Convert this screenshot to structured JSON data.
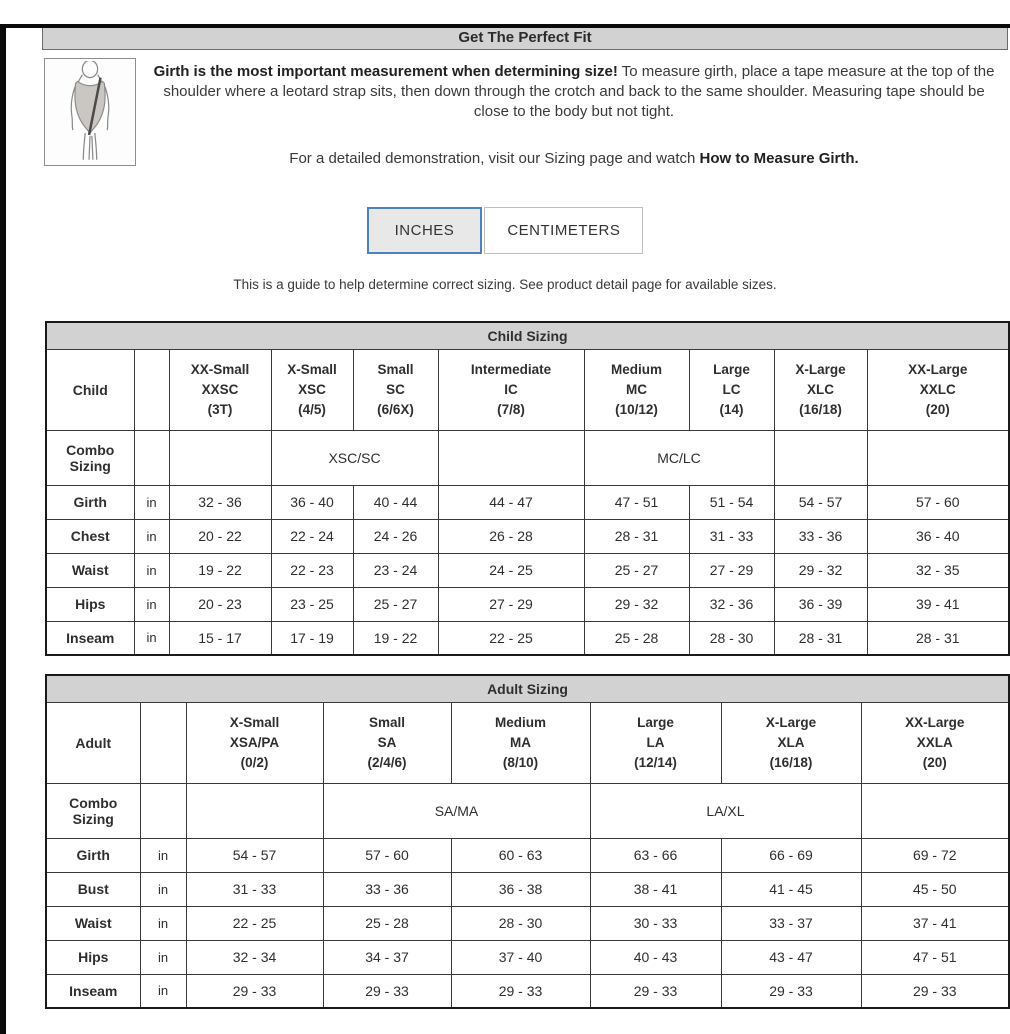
{
  "colors": {
    "accent_blue": "#4f81bd",
    "bar_gray": "#d2d2d2",
    "edge_black": "#0a0a0a",
    "text_dark": "#333333"
  },
  "header": {
    "title": "Get The Perfect Fit"
  },
  "intro": {
    "illustration": "leotard-girth-measure-diagram",
    "bold_lead": "Girth is the most important measurement when determining size!",
    "body": " To measure girth, place a tape measure at the top of the shoulder where a leotard strap sits, then down through the crotch and back to the same shoulder. Measuring tape should be close to the body but not tight.",
    "demo_prefix": "For a detailed demonstration, visit our Sizing page and watch ",
    "demo_bold": "How to Measure Girth."
  },
  "unit_toggle": {
    "options": [
      {
        "label": "INCHES",
        "selected": true
      },
      {
        "label": "CENTIMETERS",
        "selected": false
      }
    ]
  },
  "note": "This is a guide to help determine correct sizing. See product detail page for available sizes.",
  "child_table": {
    "title": "Child Sizing",
    "group_label": "Child",
    "combo_label": "Combo Sizing",
    "unit": "in",
    "columns": [
      {
        "name": "XX-Small",
        "code": "XXSC",
        "range": "(3T)"
      },
      {
        "name": "X-Small",
        "code": "XSC",
        "range": "(4/5)"
      },
      {
        "name": "Small",
        "code": "SC",
        "range": "(6/6X)"
      },
      {
        "name": "Intermediate",
        "code": "IC",
        "range": "(7/8)"
      },
      {
        "name": "Medium",
        "code": "MC",
        "range": "(10/12)"
      },
      {
        "name": "Large",
        "code": "LC",
        "range": "(14)"
      },
      {
        "name": "X-Large",
        "code": "XLC",
        "range": "(16/18)"
      },
      {
        "name": "XX-Large",
        "code": "XXLC",
        "range": "(20)"
      }
    ],
    "combo_cells": [
      {
        "label": "",
        "span": 1
      },
      {
        "label": "XSC/SC",
        "span": 2
      },
      {
        "label": "",
        "span": 1
      },
      {
        "label": "MC/LC",
        "span": 2
      },
      {
        "label": "",
        "span": 1
      },
      {
        "label": "",
        "span": 1
      }
    ],
    "rows": [
      {
        "label": "Girth",
        "values": [
          "32 - 36",
          "36 - 40",
          "40 - 44",
          "44 - 47",
          "47 - 51",
          "51 - 54",
          "54 - 57",
          "57 - 60"
        ]
      },
      {
        "label": "Chest",
        "values": [
          "20 - 22",
          "22 - 24",
          "24 - 26",
          "26 - 28",
          "28 - 31",
          "31 - 33",
          "33 - 36",
          "36 - 40"
        ]
      },
      {
        "label": "Waist",
        "values": [
          "19 - 22",
          "22 - 23",
          "23 - 24",
          "24 - 25",
          "25 - 27",
          "27 - 29",
          "29 - 32",
          "32 - 35"
        ]
      },
      {
        "label": "Hips",
        "values": [
          "20 - 23",
          "23 - 25",
          "25 - 27",
          "27 - 29",
          "29 - 32",
          "32 - 36",
          "36 - 39",
          "39 - 41"
        ]
      },
      {
        "label": "Inseam",
        "values": [
          "15 - 17",
          "17 - 19",
          "19 - 22",
          "22 - 25",
          "25 - 28",
          "28 - 30",
          "28 - 31",
          "28 - 31"
        ]
      }
    ]
  },
  "adult_table": {
    "title": "Adult Sizing",
    "group_label": "Adult",
    "combo_label": "Combo Sizing",
    "unit": "in",
    "columns": [
      {
        "name": "X-Small",
        "code": "XSA/PA",
        "range": "(0/2)"
      },
      {
        "name": "Small",
        "code": "SA",
        "range": "(2/4/6)"
      },
      {
        "name": "Medium",
        "code": "MA",
        "range": "(8/10)"
      },
      {
        "name": "Large",
        "code": "LA",
        "range": "(12/14)"
      },
      {
        "name": "X-Large",
        "code": "XLA",
        "range": "(16/18)"
      },
      {
        "name": "XX-Large",
        "code": "XXLA",
        "range": "(20)"
      }
    ],
    "combo_cells": [
      {
        "label": "",
        "span": 1
      },
      {
        "label": "SA/MA",
        "span": 2
      },
      {
        "label": "LA/XL",
        "span": 2
      },
      {
        "label": "",
        "span": 1
      }
    ],
    "rows": [
      {
        "label": "Girth",
        "values": [
          "54 - 57",
          "57 - 60",
          "60 - 63",
          "63 - 66",
          "66 - 69",
          "69 - 72"
        ]
      },
      {
        "label": "Bust",
        "values": [
          "31 - 33",
          "33 - 36",
          "36 - 38",
          "38 - 41",
          "41 - 45",
          "45 - 50"
        ]
      },
      {
        "label": "Waist",
        "values": [
          "22 - 25",
          "25 - 28",
          "28 - 30",
          "30 - 33",
          "33 - 37",
          "37 - 41"
        ]
      },
      {
        "label": "Hips",
        "values": [
          "32 - 34",
          "34 - 37",
          "37 - 40",
          "40 - 43",
          "43 - 47",
          "47 - 51"
        ]
      },
      {
        "label": "Inseam",
        "values": [
          "29 - 33",
          "29 - 33",
          "29 - 33",
          "29 - 33",
          "29 - 33",
          "29 - 33"
        ]
      }
    ]
  }
}
